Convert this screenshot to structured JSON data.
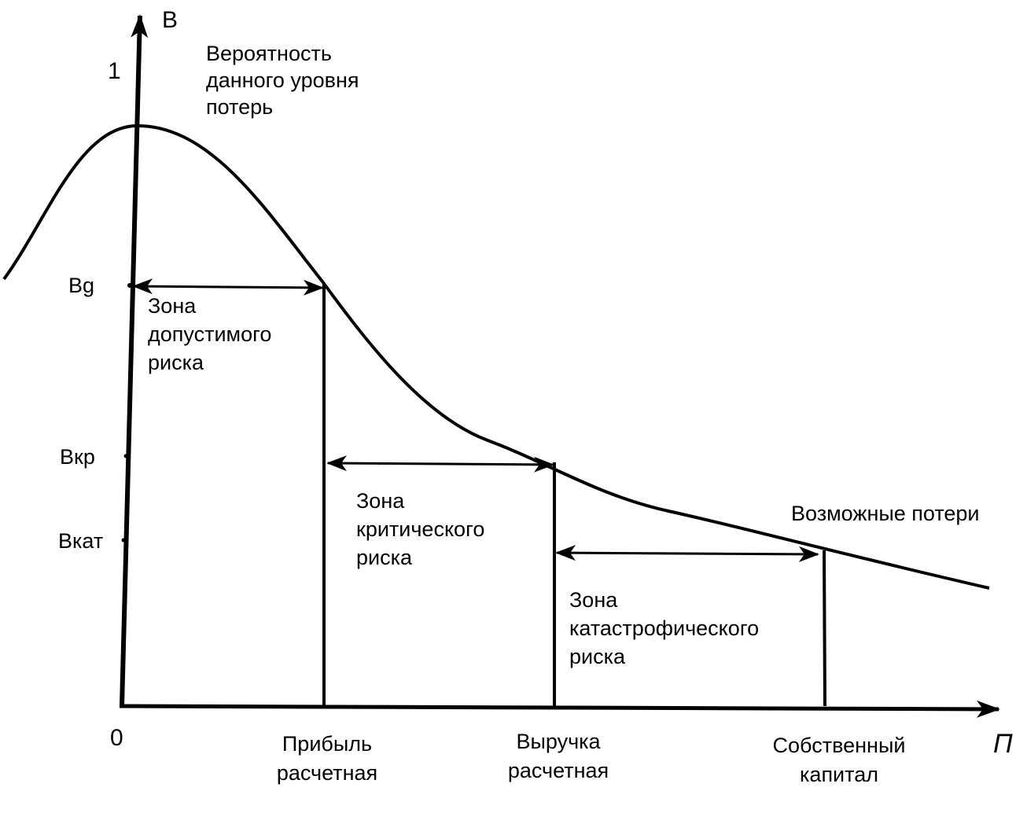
{
  "axes": {
    "y_label": "В",
    "x_label": "П",
    "origin_label": "0",
    "y_max_label": "1"
  },
  "y_axis_title": [
    "Вероятность",
    "данного уровня",
    "потерь"
  ],
  "y_ticks": {
    "bg": "Вg",
    "bkr": "Вкр",
    "bkat": "Вкат"
  },
  "curve_label": "Возможные потери",
  "zones": [
    {
      "lines": [
        "Зона",
        "допустимого",
        "риска"
      ]
    },
    {
      "lines": [
        "Зона",
        "критического",
        "риска"
      ]
    },
    {
      "lines": [
        "Зона",
        "катастрофического",
        "риска"
      ]
    }
  ],
  "x_ticks": [
    {
      "lines": [
        "Прибыль",
        "расчетная"
      ]
    },
    {
      "lines": [
        "Выручка",
        "расчетная"
      ]
    },
    {
      "lines": [
        "Собственный",
        "капитал"
      ]
    }
  ],
  "colors": {
    "ink": "#000000",
    "background": "#ffffff"
  }
}
